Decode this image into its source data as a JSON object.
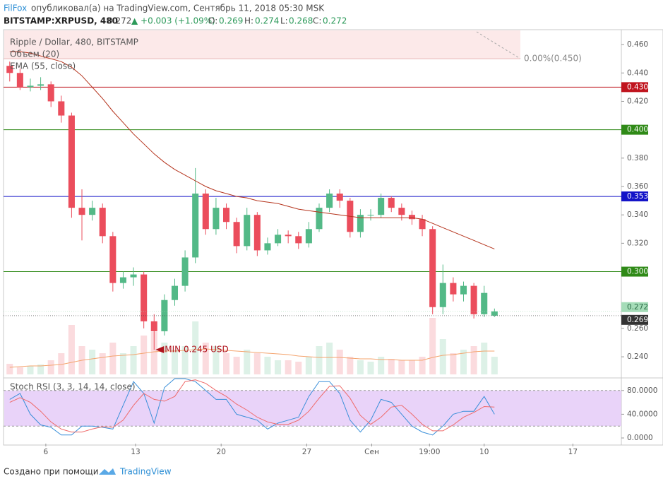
{
  "header": {
    "author": "FilFox",
    "published": "опубликовал(а) на TradingView.com, Сентябрь 11, 2018 05:30 MSK",
    "symbol": "BITSTAMP:XRPUSD, 480",
    "last": "0.272",
    "change": "▲ +0.003 (+1.09%)",
    "o_label": "O:",
    "o": "0.269",
    "h_label": "H:",
    "h": "0.274",
    "l_label": "L:",
    "l": "0.268",
    "c_label": "C:",
    "c": "0.272"
  },
  "chart_data": {
    "type": "candlestick",
    "legend": [
      "Ripple / Dollar, 480, BITSTAMP",
      "Объем (20)",
      "EMA (55, close)"
    ],
    "up_color": "#53b987",
    "down_color": "#eb4d5c",
    "ema_color": "#b5341d",
    "volume_ma_color": "#f4a46e",
    "open": [
      0.445,
      0.44,
      0.43,
      0.431,
      0.432,
      0.42,
      0.41,
      0.345,
      0.34,
      0.345,
      0.325,
      0.292,
      0.296,
      0.298,
      0.265,
      0.258,
      0.28,
      0.29,
      0.31,
      0.355,
      0.33,
      0.345,
      0.335,
      0.318,
      0.34,
      0.315,
      0.32,
      0.326,
      0.325,
      0.32,
      0.33,
      0.345,
      0.355,
      0.35,
      0.328,
      0.34,
      0.34,
      0.352,
      0.345,
      0.34,
      0.337,
      0.33,
      0.275,
      0.292,
      0.284,
      0.29,
      0.27,
      0.269
    ],
    "high": [
      0.448,
      0.443,
      0.436,
      0.437,
      0.434,
      0.424,
      0.412,
      0.358,
      0.35,
      0.348,
      0.328,
      0.3,
      0.303,
      0.3,
      0.27,
      0.284,
      0.295,
      0.315,
      0.373,
      0.358,
      0.352,
      0.348,
      0.338,
      0.345,
      0.342,
      0.324,
      0.33,
      0.329,
      0.328,
      0.335,
      0.348,
      0.358,
      0.358,
      0.352,
      0.344,
      0.344,
      0.355,
      0.353,
      0.348,
      0.343,
      0.34,
      0.332,
      0.305,
      0.296,
      0.293,
      0.292,
      0.29,
      0.274
    ],
    "low": [
      0.434,
      0.428,
      0.427,
      0.428,
      0.416,
      0.405,
      0.338,
      0.322,
      0.336,
      0.32,
      0.286,
      0.288,
      0.29,
      0.26,
      0.245,
      0.255,
      0.276,
      0.286,
      0.306,
      0.326,
      0.326,
      0.33,
      0.313,
      0.315,
      0.311,
      0.312,
      0.318,
      0.32,
      0.316,
      0.317,
      0.328,
      0.342,
      0.345,
      0.324,
      0.324,
      0.336,
      0.338,
      0.342,
      0.336,
      0.333,
      0.325,
      0.27,
      0.27,
      0.279,
      0.279,
      0.267,
      0.268,
      0.268
    ],
    "close": [
      0.44,
      0.43,
      0.431,
      0.432,
      0.42,
      0.41,
      0.345,
      0.34,
      0.345,
      0.325,
      0.292,
      0.296,
      0.298,
      0.265,
      0.258,
      0.28,
      0.29,
      0.31,
      0.355,
      0.33,
      0.345,
      0.335,
      0.318,
      0.34,
      0.315,
      0.32,
      0.326,
      0.325,
      0.32,
      0.33,
      0.345,
      0.355,
      0.35,
      0.328,
      0.34,
      0.34,
      0.352,
      0.345,
      0.34,
      0.337,
      0.33,
      0.275,
      0.292,
      0.284,
      0.29,
      0.27,
      0.285,
      0.272
    ],
    "ema": [
      0.455,
      0.455,
      0.454,
      0.452,
      0.45,
      0.448,
      0.444,
      0.438,
      0.43,
      0.422,
      0.413,
      0.405,
      0.397,
      0.39,
      0.383,
      0.377,
      0.372,
      0.368,
      0.364,
      0.36,
      0.357,
      0.355,
      0.353,
      0.352,
      0.35,
      0.349,
      0.348,
      0.346,
      0.344,
      0.343,
      0.342,
      0.341,
      0.34,
      0.339,
      0.338,
      0.338,
      0.338,
      0.338,
      0.338,
      0.338,
      0.337,
      0.334,
      0.331,
      0.328,
      0.325,
      0.322,
      0.319,
      0.316
    ],
    "volume": [
      15,
      10,
      12,
      14,
      20,
      30,
      70,
      40,
      35,
      30,
      45,
      30,
      40,
      55,
      60,
      45,
      35,
      40,
      75,
      45,
      40,
      30,
      25,
      35,
      30,
      25,
      20,
      20,
      18,
      25,
      40,
      45,
      35,
      25,
      20,
      18,
      25,
      22,
      20,
      20,
      25,
      80,
      50,
      30,
      35,
      40,
      45,
      25
    ],
    "volume_ma": [
      10,
      11,
      12,
      12,
      13,
      14,
      17,
      20,
      22,
      24,
      26,
      27,
      28,
      30,
      32,
      33,
      33,
      34,
      35,
      36,
      35,
      34,
      33,
      32,
      31,
      30,
      29,
      28,
      26,
      25,
      24,
      24,
      24,
      23,
      22,
      22,
      21,
      21,
      20,
      20,
      20,
      24,
      27,
      28,
      30,
      32,
      33,
      33
    ],
    "vlim": [
      0,
      100
    ],
    "xlim": [
      -0.6,
      59.3
    ],
    "xticks": [
      {
        "value": 3.5,
        "label": "6"
      },
      {
        "value": 12.2,
        "label": "13"
      },
      {
        "value": 20.5,
        "label": "20"
      },
      {
        "value": 28.8,
        "label": "27"
      },
      {
        "value": 35.1,
        "label": "Сен"
      },
      {
        "value": 40.7,
        "label": "19:00"
      },
      {
        "value": 46,
        "label": "10"
      },
      {
        "value": 54.6,
        "label": "17"
      }
    ],
    "ylim": [
      0.2276,
      0.4705
    ],
    "yticks": [
      {
        "value": 0.46,
        "label": "0.460"
      },
      {
        "value": 0.44,
        "label": "0.440"
      },
      {
        "value": 0.42,
        "label": "0.420"
      },
      {
        "value": 0.38,
        "label": "0.380"
      },
      {
        "value": 0.36,
        "label": "0.360"
      },
      {
        "value": 0.34,
        "label": "0.340"
      },
      {
        "value": 0.32,
        "label": "0.320"
      },
      {
        "value": 0.26,
        "label": "0.260"
      },
      {
        "value": 0.24,
        "label": "0.240"
      }
    ],
    "levels": [
      {
        "value": 0.43,
        "label": "0.430",
        "color": "#c0141e"
      },
      {
        "value": 0.4,
        "label": "0.400",
        "color": "#2f8a17"
      },
      {
        "value": 0.353,
        "label": "0.353",
        "color": "#1414c8"
      },
      {
        "value": 0.3,
        "label": "0.300",
        "color": "#2f8a17"
      }
    ],
    "price_markers": [
      {
        "value": 0.272,
        "label": "0.272",
        "color": "#a5dcb8"
      },
      {
        "value": 0.269,
        "label": "0.269",
        "color": "#333333"
      }
    ],
    "fib": {
      "value": 0.45,
      "label": "0.00%(0.450)"
    },
    "annotation": {
      "index": 14,
      "value": 0.245,
      "label": "MIN 0.245 USD",
      "color": "#b0141e"
    },
    "stoch": {
      "legend": "Stoch RSI (3, 3, 14, 14, close)",
      "k_color": "#3a8fd9",
      "d_color": "#ef6a6a",
      "band_color": "#e3c8f7",
      "band": [
        20,
        80
      ],
      "lim": [
        0,
        100
      ],
      "ticks": [
        {
          "value": 80,
          "label": "80.0000"
        },
        {
          "value": 40,
          "label": "40.0000"
        },
        {
          "value": 0,
          "label": "0.0000"
        }
      ],
      "k": [
        65,
        75,
        40,
        22,
        18,
        5,
        5,
        20,
        20,
        18,
        15,
        55,
        95,
        75,
        25,
        85,
        100,
        100,
        95,
        80,
        65,
        65,
        40,
        35,
        30,
        15,
        25,
        30,
        35,
        70,
        95,
        95,
        75,
        30,
        10,
        30,
        65,
        60,
        40,
        20,
        10,
        5,
        20,
        40,
        45,
        45,
        70,
        40
      ],
      "d": [
        60,
        68,
        60,
        45,
        27,
        15,
        10,
        10,
        15,
        19,
        18,
        30,
        55,
        75,
        65,
        62,
        70,
        95,
        98,
        92,
        80,
        70,
        57,
        47,
        35,
        27,
        23,
        23,
        30,
        45,
        67,
        87,
        88,
        67,
        38,
        23,
        35,
        52,
        55,
        40,
        23,
        12,
        12,
        22,
        35,
        43,
        53,
        52
      ]
    }
  },
  "footer": {
    "made_with": "Создано при помощи",
    "brand": "TradingView"
  }
}
